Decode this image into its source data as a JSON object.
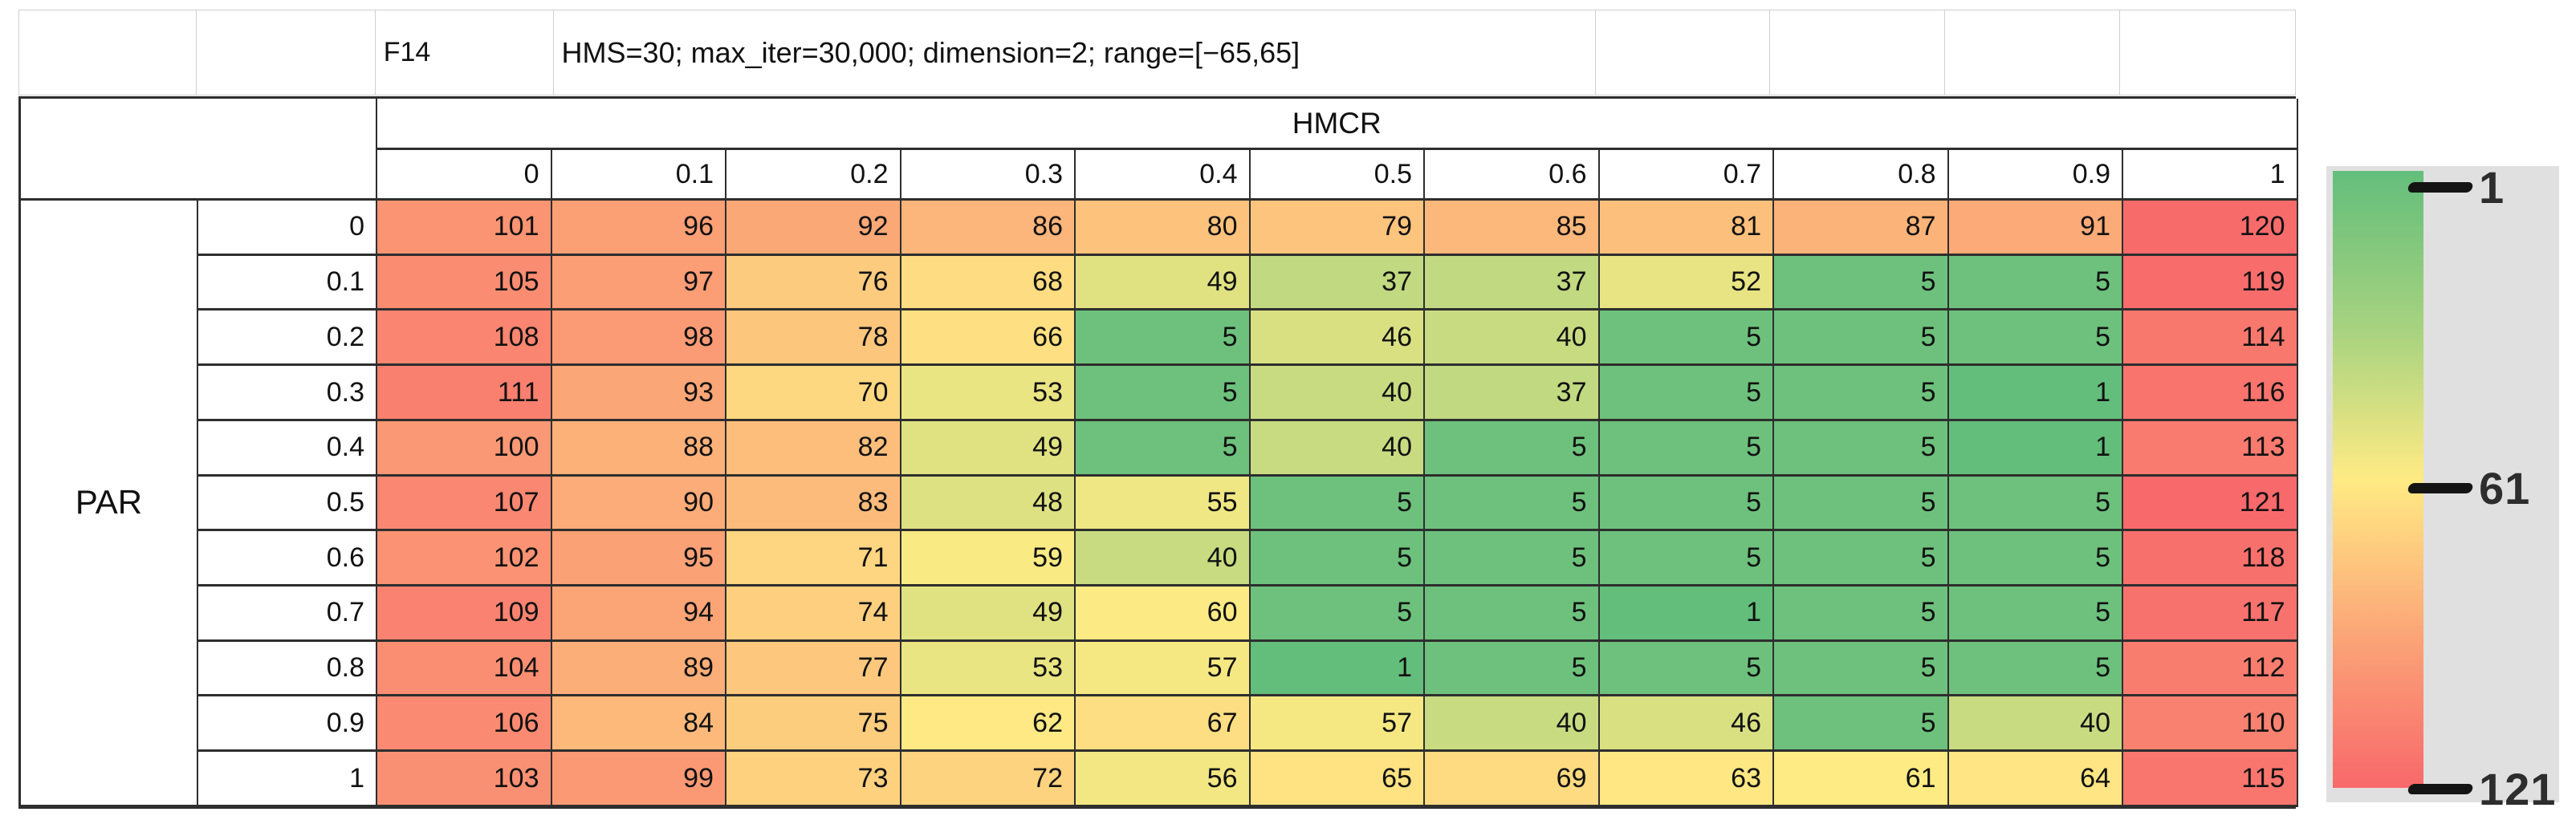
{
  "top_info": {
    "function_id": "F14",
    "params": "HMS=30; max_iter=30,000; dimension=2; range=[−65,65]"
  },
  "chart_data": {
    "type": "heatmap",
    "title": "F14",
    "subtitle": "HMS=30; max_iter=30,000; dimension=2; range=[−65,65]",
    "x_axis_label": "HMCR",
    "y_axis_label": "PAR",
    "x_labels": [
      "0",
      "0.1",
      "0.2",
      "0.3",
      "0.4",
      "0.5",
      "0.6",
      "0.7",
      "0.8",
      "0.9",
      "1"
    ],
    "y_labels": [
      "0",
      "0.1",
      "0.2",
      "0.3",
      "0.4",
      "0.5",
      "0.6",
      "0.7",
      "0.8",
      "0.9",
      "1"
    ],
    "values": [
      [
        101,
        96,
        92,
        86,
        80,
        79,
        85,
        81,
        87,
        91,
        120
      ],
      [
        105,
        97,
        76,
        68,
        49,
        37,
        37,
        52,
        5,
        5,
        119
      ],
      [
        108,
        98,
        78,
        66,
        5,
        46,
        40,
        5,
        5,
        5,
        114
      ],
      [
        111,
        93,
        70,
        53,
        5,
        40,
        37,
        5,
        5,
        1,
        116
      ],
      [
        100,
        88,
        82,
        49,
        5,
        40,
        5,
        5,
        5,
        1,
        113
      ],
      [
        107,
        90,
        83,
        48,
        55,
        5,
        5,
        5,
        5,
        5,
        121
      ],
      [
        102,
        95,
        71,
        59,
        40,
        5,
        5,
        5,
        5,
        5,
        118
      ],
      [
        109,
        94,
        74,
        49,
        60,
        5,
        5,
        1,
        5,
        5,
        117
      ],
      [
        104,
        89,
        77,
        53,
        57,
        1,
        5,
        5,
        5,
        5,
        112
      ],
      [
        106,
        84,
        75,
        62,
        67,
        57,
        40,
        46,
        5,
        40,
        110
      ],
      [
        103,
        99,
        73,
        72,
        56,
        65,
        69,
        63,
        61,
        64,
        115
      ]
    ],
    "color_scale": {
      "min": 1,
      "mid": 61,
      "max": 121,
      "min_color": "#63BE7B",
      "mid_color": "#FFEB84",
      "max_color": "#F8696B"
    },
    "legend": {
      "ticks": [
        {
          "label": "1",
          "value": 1
        },
        {
          "label": "61",
          "value": 61
        },
        {
          "label": "121",
          "value": 121
        }
      ]
    }
  }
}
